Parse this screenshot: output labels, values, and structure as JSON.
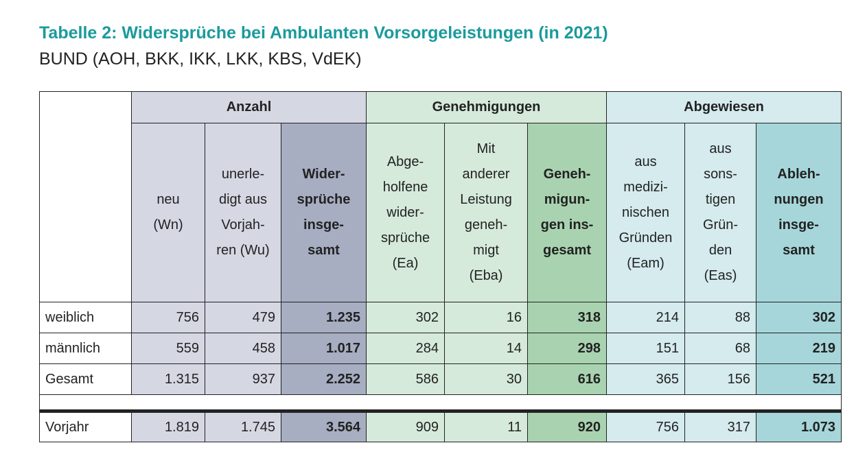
{
  "title": "Tabelle 2: Widersprüche bei Ambulanten Vorsorgeleistungen (in 2021)",
  "subtitle": "BUND (AOH, BKK, IKK, LKK, KBS, VdEK)",
  "groups": [
    "Anzahl",
    "Genehmigungen",
    "Abgewiesen"
  ],
  "columns": [
    "neu\n(Wn)",
    "unerle-\ndigt aus\nVorjah-\nren (Wu)",
    "Wider-\nsprüche\ninsge-\nsamt",
    "Abge-\nholfene\nwider-\nsprüche\n(Ea)",
    "Mit\nanderer\nLeistung\ngeneh-\nmigt\n(Eba)",
    "Geneh-\nmigun-\ngen ins-\ngesamt",
    "aus\nmedizi-\nnischen\nGründen\n(Eam)",
    "aus\nsons-\ntigen\nGrün-\nden\n(Eas)",
    "Ableh-\nnungen\ninsge-\nsamt"
  ],
  "rows": [
    {
      "label": "weiblich",
      "values": [
        "756",
        "479",
        "1.235",
        "302",
        "16",
        "318",
        "214",
        "88",
        "302"
      ]
    },
    {
      "label": "männlich",
      "values": [
        "559",
        "458",
        "1.017",
        "284",
        "14",
        "298",
        "151",
        "68",
        "219"
      ]
    },
    {
      "label": "Gesamt",
      "values": [
        "1.315",
        "937",
        "2.252",
        "586",
        "30",
        "616",
        "365",
        "156",
        "521"
      ]
    },
    {
      "label": "Vorjahr",
      "values": [
        "1.819",
        "1.745",
        "3.564",
        "909",
        "11",
        "920",
        "756",
        "317",
        "1.073"
      ]
    }
  ]
}
